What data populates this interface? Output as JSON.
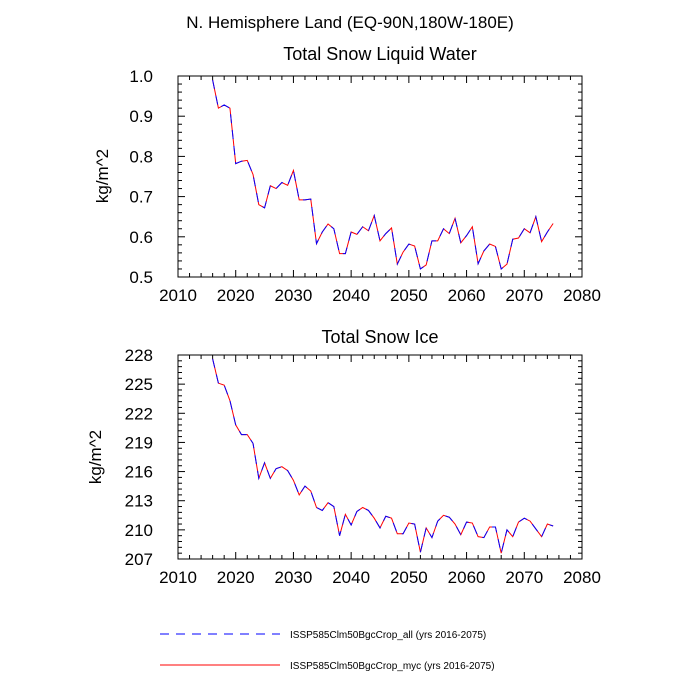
{
  "figure": {
    "main_title": "N. Hemisphere Land (EQ-90N,180W-180E)"
  },
  "legend": {
    "entries": [
      {
        "label": "ISSP585Clm50BgcCrop_all (yrs 2016-2075)",
        "color": "#0000ff",
        "style": "dashed"
      },
      {
        "label": "ISSP585Clm50BgcCrop_myc (yrs 2016-2075)",
        "color": "#ff0000",
        "style": "solid"
      }
    ]
  },
  "chart_data": [
    {
      "type": "line",
      "title": "Total Snow Liquid Water",
      "xlabel": "",
      "ylabel": "kg/m^2",
      "xlim": [
        2010,
        2080
      ],
      "ylim": [
        0.5,
        1.0
      ],
      "xticks": [
        2010,
        2020,
        2030,
        2040,
        2050,
        2060,
        2070,
        2080
      ],
      "xtick_labels": [
        "2010",
        "2020",
        "2030",
        "2040",
        "2050",
        "2060",
        "2070",
        "2080"
      ],
      "yticks": [
        0.5,
        0.6,
        0.7,
        0.8,
        0.9,
        1.0
      ],
      "ytick_labels": [
        "0.5",
        "0.6",
        "0.7",
        "0.8",
        "0.9",
        "1.0"
      ],
      "x": [
        2016,
        2017,
        2018,
        2019,
        2020,
        2021,
        2022,
        2023,
        2024,
        2025,
        2026,
        2027,
        2028,
        2029,
        2030,
        2031,
        2032,
        2033,
        2034,
        2035,
        2036,
        2037,
        2038,
        2039,
        2040,
        2041,
        2042,
        2043,
        2044,
        2045,
        2046,
        2047,
        2048,
        2049,
        2050,
        2051,
        2052,
        2053,
        2054,
        2055,
        2056,
        2057,
        2058,
        2059,
        2060,
        2061,
        2062,
        2063,
        2064,
        2065,
        2066,
        2067,
        2068,
        2069,
        2070,
        2071,
        2072,
        2073,
        2074,
        2075
      ],
      "series": [
        {
          "name": "ISSP585Clm50BgcCrop_all (yrs 2016-2075)",
          "color": "#0000ff",
          "style": "dashed",
          "values": [
            0.99,
            0.92,
            0.928,
            0.92,
            0.782,
            0.788,
            0.79,
            0.755,
            0.68,
            0.672,
            0.727,
            0.72,
            0.735,
            0.728,
            0.765,
            0.692,
            0.692,
            0.694,
            0.583,
            0.612,
            0.632,
            0.62,
            0.558,
            0.558,
            0.612,
            0.606,
            0.625,
            0.615,
            0.653,
            0.59,
            0.608,
            0.622,
            0.532,
            0.562,
            0.582,
            0.577,
            0.52,
            0.53,
            0.59,
            0.59,
            0.62,
            0.608,
            0.646,
            0.585,
            0.603,
            0.625,
            0.533,
            0.565,
            0.582,
            0.576,
            0.52,
            0.532,
            0.594,
            0.597,
            0.62,
            0.61,
            0.65,
            0.588,
            0.612,
            0.633
          ]
        },
        {
          "name": "ISSP585Clm50BgcCrop_myc (yrs 2016-2075)",
          "color": "#ff0000",
          "style": "solid",
          "values": [
            0.99,
            0.92,
            0.928,
            0.92,
            0.782,
            0.788,
            0.79,
            0.755,
            0.68,
            0.672,
            0.727,
            0.72,
            0.735,
            0.728,
            0.765,
            0.692,
            0.692,
            0.694,
            0.583,
            0.612,
            0.632,
            0.62,
            0.558,
            0.558,
            0.612,
            0.606,
            0.625,
            0.615,
            0.653,
            0.59,
            0.608,
            0.622,
            0.532,
            0.562,
            0.582,
            0.577,
            0.52,
            0.53,
            0.59,
            0.59,
            0.62,
            0.608,
            0.646,
            0.585,
            0.603,
            0.625,
            0.533,
            0.565,
            0.582,
            0.576,
            0.52,
            0.532,
            0.594,
            0.597,
            0.62,
            0.61,
            0.65,
            0.588,
            0.612,
            0.633
          ]
        }
      ]
    },
    {
      "type": "line",
      "title": "Total Snow Ice",
      "xlabel": "",
      "ylabel": "kg/m^2",
      "xlim": [
        2010,
        2080
      ],
      "ylim": [
        207,
        228
      ],
      "xticks": [
        2010,
        2020,
        2030,
        2040,
        2050,
        2060,
        2070,
        2080
      ],
      "xtick_labels": [
        "2010",
        "2020",
        "2030",
        "2040",
        "2050",
        "2060",
        "2070",
        "2080"
      ],
      "yticks": [
        207,
        210,
        213,
        216,
        219,
        222,
        225,
        228
      ],
      "ytick_labels": [
        "207",
        "210",
        "213",
        "216",
        "219",
        "222",
        "225",
        "228"
      ],
      "x": [
        2016,
        2017,
        2018,
        2019,
        2020,
        2021,
        2022,
        2023,
        2024,
        2025,
        2026,
        2027,
        2028,
        2029,
        2030,
        2031,
        2032,
        2033,
        2034,
        2035,
        2036,
        2037,
        2038,
        2039,
        2040,
        2041,
        2042,
        2043,
        2044,
        2045,
        2046,
        2047,
        2048,
        2049,
        2050,
        2051,
        2052,
        2053,
        2054,
        2055,
        2056,
        2057,
        2058,
        2059,
        2060,
        2061,
        2062,
        2063,
        2064,
        2065,
        2066,
        2067,
        2068,
        2069,
        2070,
        2071,
        2072,
        2073,
        2074,
        2075
      ],
      "series": [
        {
          "name": "ISSP585Clm50BgcCrop_all (yrs 2016-2075)",
          "color": "#0000ff",
          "style": "dashed",
          "values": [
            227.6,
            225.1,
            224.9,
            223.3,
            220.8,
            219.8,
            219.8,
            218.9,
            215.3,
            216.9,
            215.3,
            216.3,
            216.5,
            216.1,
            215.1,
            213.6,
            214.5,
            214.0,
            212.3,
            212.0,
            212.8,
            212.4,
            209.4,
            211.6,
            210.5,
            211.9,
            212.3,
            212.0,
            211.2,
            210.2,
            211.4,
            211.2,
            209.6,
            209.6,
            210.7,
            210.6,
            207.7,
            210.2,
            209.2,
            210.9,
            211.5,
            211.3,
            210.6,
            209.5,
            210.8,
            210.7,
            209.3,
            209.2,
            210.3,
            210.3,
            207.6,
            210.0,
            209.3,
            210.8,
            211.2,
            210.9,
            210.1,
            209.3,
            210.6,
            210.4
          ]
        },
        {
          "name": "ISSP585Clm50BgcCrop_myc (yrs 2016-2075)",
          "color": "#ff0000",
          "style": "solid",
          "values": [
            227.6,
            225.1,
            224.9,
            223.3,
            220.8,
            219.8,
            219.8,
            218.9,
            215.3,
            216.9,
            215.3,
            216.3,
            216.5,
            216.1,
            215.1,
            213.6,
            214.5,
            214.0,
            212.3,
            212.0,
            212.8,
            212.4,
            209.4,
            211.6,
            210.5,
            211.9,
            212.3,
            212.0,
            211.2,
            210.2,
            211.4,
            211.2,
            209.6,
            209.6,
            210.7,
            210.6,
            207.7,
            210.2,
            209.2,
            210.9,
            211.5,
            211.3,
            210.6,
            209.5,
            210.8,
            210.7,
            209.3,
            209.2,
            210.3,
            210.3,
            207.6,
            210.0,
            209.3,
            210.8,
            211.2,
            210.9,
            210.1,
            209.3,
            210.6,
            210.4
          ]
        }
      ]
    }
  ]
}
